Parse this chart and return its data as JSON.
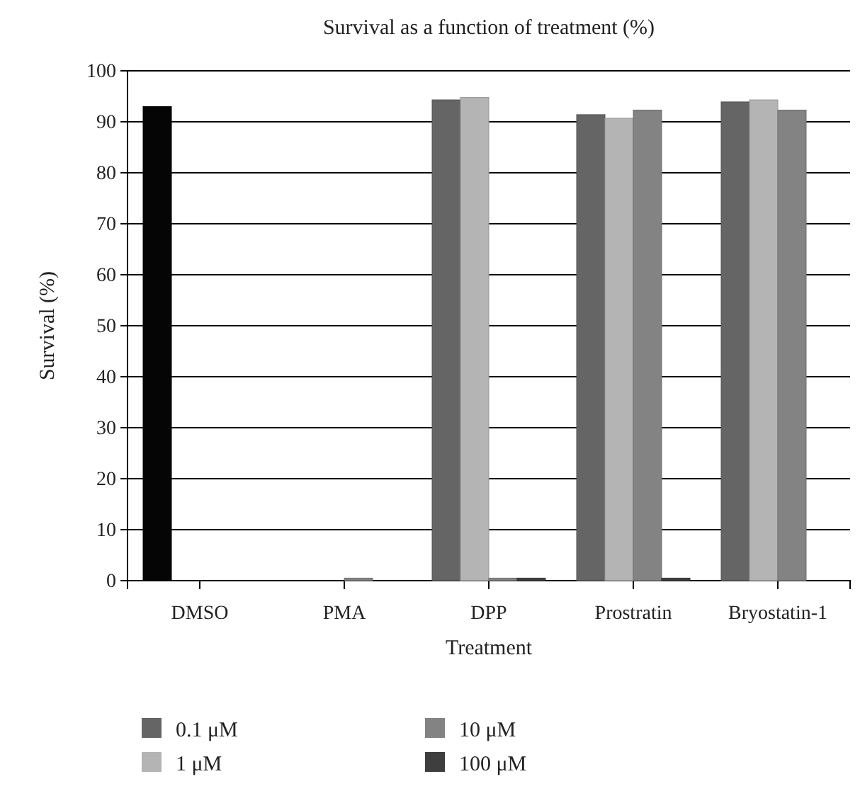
{
  "chart_data": {
    "type": "bar",
    "title": "Survival as a function of treatment (%)",
    "xlabel": "Treatment",
    "ylabel": "Survival (%)",
    "categories": [
      "DMSO",
      "PMA",
      "DPP",
      "Prostratin",
      "Bryostatin-1"
    ],
    "series": [
      {
        "color": "#050505",
        "values": [
          93,
          null,
          null,
          null,
          null
        ]
      },
      {
        "name": "0.1 μM",
        "color": "#646564",
        "values": [
          null,
          null,
          94.3,
          91.4,
          93.9
        ]
      },
      {
        "name": "1 μM",
        "color": "#b3b4b3",
        "values": [
          null,
          null,
          94.8,
          90.7,
          94.3
        ]
      },
      {
        "name": "10 μM",
        "color": "#828382",
        "values": [
          null,
          0.5,
          0.5,
          92.3,
          92.3
        ]
      },
      {
        "name": "100 μM",
        "color": "#3e3e3e",
        "values": [
          null,
          null,
          0.5,
          0.5,
          null
        ]
      }
    ],
    "ylim": [
      0,
      100
    ],
    "yticks": [
      0,
      10,
      20,
      30,
      40,
      50,
      60,
      70,
      80,
      90,
      100
    ],
    "grid": "y",
    "legend": "bottom"
  }
}
